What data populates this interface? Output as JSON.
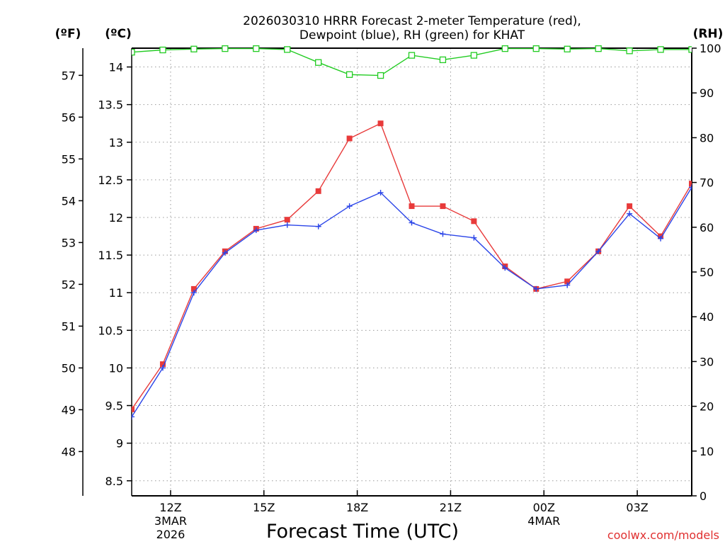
{
  "chart_data": {
    "type": "line",
    "title_lines": [
      "2026030310 HRRR Forecast 2-meter Temperature (red),",
      "Dewpoint (blue), RH (green) for KHAT"
    ],
    "xlabel": "Forecast Time (UTC)",
    "credit": "coolwx.com/models",
    "units": {
      "fahrenheit": "(ºF)",
      "celsius": "(ºC)",
      "rh": "(RH)"
    },
    "x_range": [
      10.75,
      28.75
    ],
    "x_ticks": [
      {
        "x": 12,
        "label": "12Z",
        "sub": [
          "3MAR",
          "2026"
        ]
      },
      {
        "x": 15,
        "label": "15Z",
        "sub": []
      },
      {
        "x": 18,
        "label": "18Z",
        "sub": []
      },
      {
        "x": 21,
        "label": "21Z",
        "sub": []
      },
      {
        "x": 24,
        "label": "00Z",
        "sub": [
          "4MAR"
        ]
      },
      {
        "x": 27,
        "label": "03Z",
        "sub": []
      }
    ],
    "celsius_axis": {
      "ylim": [
        8.3,
        14.25
      ],
      "ticks": [
        "8.5",
        "9",
        "9.5",
        "10",
        "10.5",
        "11",
        "11.5",
        "12",
        "12.5",
        "13",
        "13.5",
        "14"
      ]
    },
    "fahrenheit_axis": {
      "ticks": [
        "48",
        "49",
        "50",
        "51",
        "52",
        "53",
        "54",
        "55",
        "56",
        "57"
      ]
    },
    "rh_axis": {
      "ylim": [
        0,
        100
      ],
      "ticks": [
        "0",
        "10",
        "20",
        "30",
        "40",
        "50",
        "60",
        "70",
        "80",
        "90",
        "100"
      ]
    },
    "x": [
      10.75,
      11.75,
      12.75,
      13.75,
      14.75,
      15.75,
      16.75,
      17.75,
      18.75,
      19.75,
      20.75,
      21.75,
      22.75,
      23.75,
      24.75,
      25.75,
      26.75,
      27.75,
      28.75
    ],
    "series": [
      {
        "name": "Temperature",
        "axis": "celsius",
        "color": "#e83a3a",
        "marker": "filled-square",
        "values": [
          9.45,
          10.05,
          11.05,
          11.55,
          11.85,
          11.97,
          12.35,
          13.05,
          13.25,
          12.15,
          12.15,
          11.95,
          11.35,
          11.05,
          11.15,
          11.55,
          12.15,
          11.75,
          12.45
        ]
      },
      {
        "name": "Dewpoint",
        "axis": "celsius",
        "color": "#2a44e8",
        "marker": "plus",
        "values": [
          9.35,
          10.0,
          11.0,
          11.53,
          11.83,
          11.9,
          11.88,
          12.15,
          12.33,
          11.93,
          11.78,
          11.73,
          11.33,
          11.05,
          11.1,
          11.55,
          12.05,
          11.72,
          12.4
        ]
      },
      {
        "name": "RH",
        "axis": "rh",
        "color": "#22cc22",
        "marker": "hollow-square",
        "values": [
          99.1,
          99.6,
          99.8,
          99.9,
          99.9,
          99.7,
          96.8,
          94.1,
          93.9,
          98.4,
          97.4,
          98.4,
          99.9,
          99.9,
          99.8,
          99.9,
          99.4,
          99.7,
          99.7
        ]
      }
    ]
  }
}
